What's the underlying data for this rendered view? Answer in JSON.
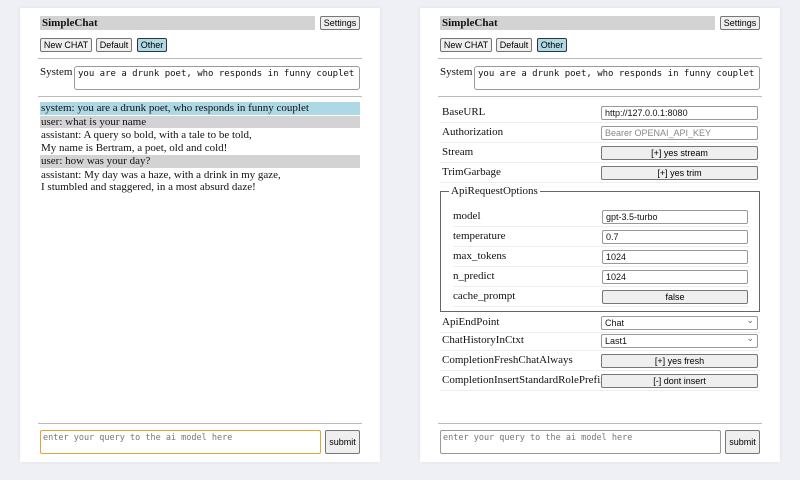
{
  "app": {
    "title": "SimpleChat",
    "settings_label": "Settings",
    "new_chat": "New CHAT",
    "default": "Default",
    "other": "Other",
    "system_label": "System",
    "system_prompt": "you are a drunk poet, who responds in funny couplet",
    "query_placeholder": "enter your query to the ai model here",
    "submit": "submit",
    "active_accent": "#add8e6"
  },
  "chat": {
    "messages": [
      {
        "role": "system",
        "text": "system: you are a drunk poet, who responds in funny couplet"
      },
      {
        "role": "user",
        "text": "user: what is your name"
      },
      {
        "role": "assistant",
        "text": "assistant: A query so bold, with a tale to be told,\nMy name is Bertram, a poet, old and cold!"
      },
      {
        "role": "user",
        "text": "user: how was your day?"
      },
      {
        "role": "assistant",
        "text": "assistant: My day was a haze, with a drink in my gaze,\nI stumbled and staggered, in a most absurd daze!"
      }
    ]
  },
  "settings": {
    "base_url": {
      "label": "BaseURL",
      "value": "http://127.0.0.1:8080"
    },
    "authorization": {
      "label": "Authorization",
      "placeholder": "Bearer OPENAI_API_KEY"
    },
    "stream": {
      "label": "Stream",
      "value": "[+] yes stream"
    },
    "trim": {
      "label": "TrimGarbage",
      "value": "[+] yes trim"
    },
    "api_options": {
      "legend": "ApiRequestOptions",
      "model": {
        "label": "model",
        "value": "gpt-3.5-turbo"
      },
      "temperature": {
        "label": "temperature",
        "value": "0.7"
      },
      "max_tokens": {
        "label": "max_tokens",
        "value": "1024"
      },
      "n_predict": {
        "label": "n_predict",
        "value": "1024"
      },
      "cache_prompt": {
        "label": "cache_prompt",
        "value": "false"
      }
    },
    "endpoint": {
      "label": "ApiEndPoint",
      "value": "Chat"
    },
    "history": {
      "label": "ChatHistoryInCtxt",
      "value": "Last1"
    },
    "fresh": {
      "label": "CompletionFreshChatAlways",
      "value": "[+] yes fresh"
    },
    "prefix": {
      "label": "CompletionInsertStandardRolePrefix",
      "value": "[-] dont insert"
    }
  }
}
